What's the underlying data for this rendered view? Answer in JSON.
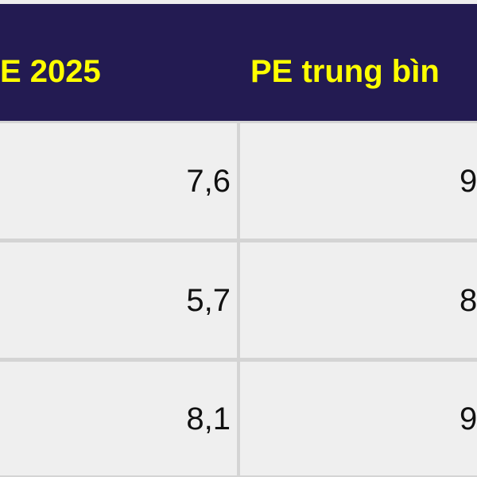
{
  "table": {
    "header": [
      "E 2025",
      "PE trung bìn"
    ],
    "rows": [
      [
        "7,6",
        "9"
      ],
      [
        "5,7",
        "8"
      ],
      [
        "8,1",
        "9"
      ]
    ]
  }
}
